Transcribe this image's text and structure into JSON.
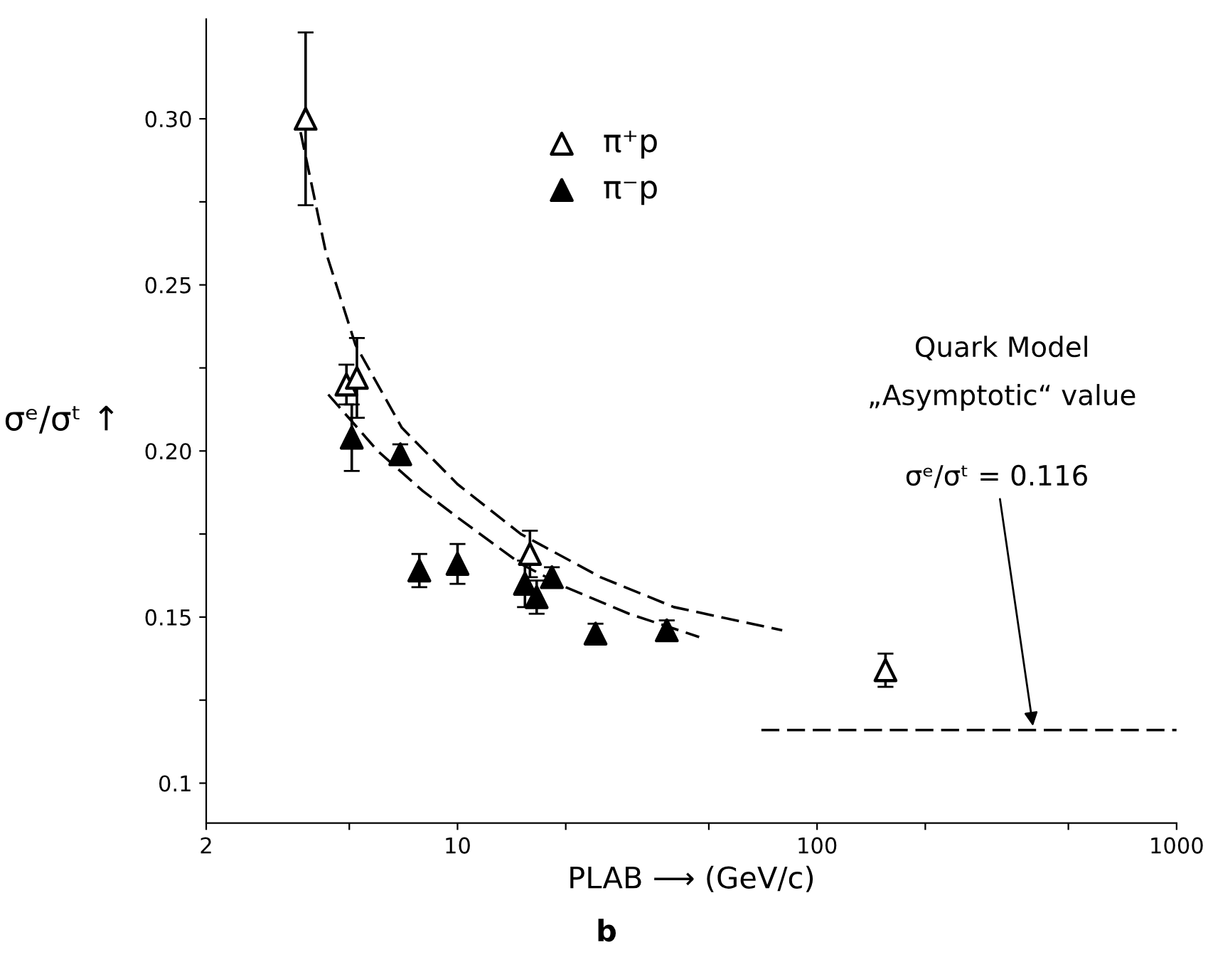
{
  "chart_data": {
    "type": "scatter",
    "xlabel": "PLAB ⟶ (GeV/c)",
    "ylabel": "σᵉ/σᵗ ↑",
    "log": "x",
    "xlim": [
      2,
      1000
    ],
    "ylim": [
      0.088,
      0.33
    ],
    "xticks": [
      2,
      {
        "value": 5,
        "label": null
      },
      10,
      {
        "value": 20,
        "label": null
      },
      {
        "value": 50,
        "label": null
      },
      100,
      {
        "value": 200,
        "label": null
      },
      {
        "value": 500,
        "label": null
      },
      1000
    ],
    "yticks": [
      {
        "value": 0.1,
        "label": "0.1"
      },
      {
        "value": 0.125,
        "label": null
      },
      0.15,
      {
        "value": 0.175,
        "label": null
      },
      {
        "value": 0.2,
        "label": "0.20"
      },
      {
        "value": 0.225,
        "label": null
      },
      0.25,
      {
        "value": 0.275,
        "label": null
      },
      {
        "value": 0.3,
        "label": "0.30"
      }
    ],
    "grid": false,
    "legend": "top",
    "series": [
      {
        "name": "π⁺p",
        "marker": "triangle",
        "color": "#ffffff",
        "x": [
          3.78,
          4.91,
          5.25,
          15.9,
          155
        ],
        "values": [
          0.3,
          0.22,
          0.222,
          0.169,
          0.134
        ],
        "errors": [
          0.026,
          0.006,
          0.012,
          0.007,
          0.005
        ]
      },
      {
        "name": "π⁻p",
        "marker": "triangle",
        "color": "#000000",
        "x": [
          5.08,
          6.93,
          7.83,
          10,
          15.4,
          16.6,
          18.3,
          24.2,
          38.2
        ],
        "values": [
          0.204,
          0.199,
          0.164,
          0.166,
          0.16,
          0.156,
          0.162,
          0.145,
          0.146
        ],
        "errors": [
          0.01,
          0.003,
          0.005,
          0.006,
          0.007,
          0.005,
          0.003,
          0.003,
          0.003
        ]
      },
      {
        "type": "line",
        "line_style": "dashed",
        "color": "#000000",
        "x": [
          3.66,
          4.3,
          5.2,
          7,
          10,
          15,
          25,
          40,
          80
        ],
        "values": [
          0.296,
          0.26,
          0.232,
          0.207,
          0.19,
          0.175,
          0.162,
          0.153,
          0.146
        ]
      },
      {
        "type": "line",
        "line_style": "dashed",
        "color": "#000000",
        "x": [
          4.37,
          6,
          8,
          10,
          15,
          20,
          30,
          47
        ],
        "values": [
          0.217,
          0.2,
          0.188,
          0.18,
          0.166,
          0.159,
          0.151,
          0.144
        ]
      },
      {
        "type": "line",
        "line_style": "dashed",
        "color": "#000000",
        "x": [
          70,
          1000
        ],
        "values": [
          0.116,
          0.116
        ]
      }
    ],
    "annotations": [
      "Quark Model",
      "„Asymptotic“ value",
      {
        "text": "σᵉ/σᵗ = 0.116",
        "x": 400,
        "y": 0.116
      },
      "b"
    ]
  }
}
